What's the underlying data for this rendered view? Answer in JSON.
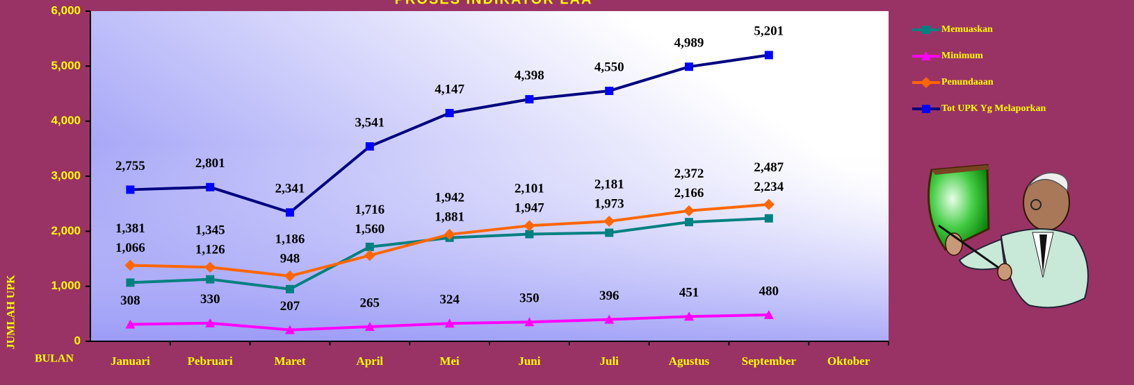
{
  "chart_data": {
    "type": "line",
    "title": "PROSES INDIKATOR LAA",
    "x_label": "BULAN",
    "y_label": "JUMLAH UPK",
    "categories": [
      "Januari",
      "Pebruari",
      "Maret",
      "April",
      "Mei",
      "Juni",
      "Juli",
      "Agustus",
      "September",
      "Oktober"
    ],
    "ylim": [
      0,
      6000
    ],
    "yticks": [
      0,
      {
        "value": 1000,
        "label": "1,000"
      },
      {
        "value": 2000,
        "label": "2,000"
      },
      {
        "value": 3000,
        "label": "3,000"
      },
      {
        "value": 4000,
        "label": "4,000"
      },
      {
        "value": 5000,
        "label": "5,000"
      },
      {
        "value": 6000,
        "label": "6,000"
      }
    ],
    "series": [
      {
        "name": "Memuaskan",
        "color": "#008080",
        "marker": "square",
        "marker_color": "#008080",
        "values": [
          1066,
          1126,
          948,
          1716,
          1881,
          1947,
          1973,
          2166,
          2234,
          null
        ],
        "value_labels": [
          "1,066",
          "1,126",
          "948",
          "1,716",
          "1,881",
          "1,947",
          "1,973",
          "2,166",
          "2,234",
          null
        ]
      },
      {
        "name": "Minimum",
        "color": "#ff00ff",
        "marker": "triangle",
        "marker_color": "#ff00ff",
        "values": [
          308,
          330,
          207,
          265,
          324,
          350,
          396,
          451,
          480,
          null
        ],
        "value_labels": [
          "308",
          "330",
          "207",
          "265",
          "324",
          "350",
          "396",
          "451",
          "480",
          null
        ]
      },
      {
        "name": "Penundaaan",
        "color": "#ff6600",
        "marker": "diamond",
        "marker_color": "#ff6600",
        "values": [
          1381,
          1345,
          1186,
          1560,
          1942,
          2101,
          2181,
          2372,
          2487,
          null
        ],
        "value_labels": [
          "1,381",
          "1,345",
          "1,186",
          "1,560",
          "1,942",
          "2,101",
          "2,181",
          "2,372",
          "2,487",
          null
        ]
      },
      {
        "name": "Tot UPK Yg Melaporkan",
        "color": "#000080",
        "marker": "square",
        "marker_color": "#0000ff",
        "values": [
          2755,
          2801,
          2341,
          3541,
          4147,
          4398,
          4550,
          4989,
          5201,
          null
        ],
        "value_labels": [
          "2,755",
          "2,801",
          "2,341",
          "3,541",
          "4,147",
          "4,398",
          "4,550",
          "4,989",
          "5,201",
          null
        ]
      }
    ]
  }
}
